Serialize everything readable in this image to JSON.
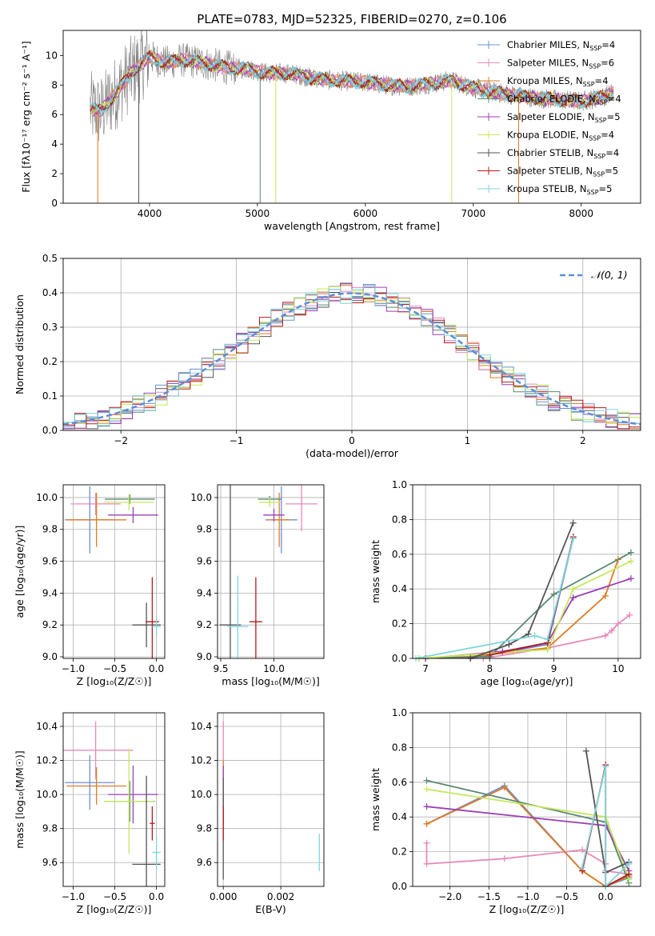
{
  "figure_title": "PLATE=0783, MJD=52325, FIBERID=0270, z=0.106",
  "series_styles": [
    {
      "name": "Chabrier MILES",
      "nssp": "4",
      "color": "#6b8fd6"
    },
    {
      "name": "Salpeter MILES",
      "nssp": "6",
      "color": "#e88aba"
    },
    {
      "name": "Kroupa MILES",
      "nssp": "4",
      "color": "#e07b22"
    },
    {
      "name": "Chabrier ELODIE",
      "nssp": "4",
      "color": "#5a8a72"
    },
    {
      "name": "Salpeter ELODIE",
      "nssp": "5",
      "color": "#9b3fb5"
    },
    {
      "name": "Kroupa ELODIE",
      "nssp": "4",
      "color": "#c6e85a"
    },
    {
      "name": "Chabrier STELIB",
      "nssp": "4",
      "color": "#555555"
    },
    {
      "name": "Salpeter STELIB",
      "nssp": "5",
      "color": "#b31b1b"
    },
    {
      "name": "Kroupa STELIB",
      "nssp": "5",
      "color": "#7fd6dc"
    }
  ],
  "chart_data": [
    {
      "id": "spectrum",
      "type": "line",
      "xlabel": "wavelength [Angstrom, rest frame]",
      "ylabel": "Flux [fλ10⁻¹⁷ erg cm⁻² s⁻¹ A⁻¹]",
      "xlim": [
        3200,
        8550
      ],
      "ylim": [
        0,
        11.7
      ],
      "xticks": [
        4000,
        5000,
        6000,
        7000,
        8000
      ],
      "yticks": [
        0,
        2,
        4,
        6,
        8,
        10
      ],
      "legend_position": "top-right",
      "model_curve": {
        "x": [
          3450,
          3550,
          3700,
          3850,
          4000,
          4150,
          4300,
          4500,
          4700,
          4900,
          5100,
          5300,
          5500,
          5700,
          6000,
          6200,
          6400,
          6600,
          6800,
          7000,
          7200,
          7400,
          7600,
          7800,
          8000,
          8200,
          8300
        ],
        "y": [
          6.4,
          6.2,
          7.6,
          9.0,
          9.9,
          9.5,
          9.7,
          9.5,
          9.2,
          9.1,
          8.8,
          8.8,
          8.5,
          8.3,
          8.2,
          8.0,
          7.9,
          8.1,
          8.3,
          7.8,
          7.5,
          7.3,
          7.1,
          7.0,
          6.9,
          7.2,
          7.5
        ]
      }
    },
    {
      "id": "residuals",
      "type": "bar",
      "xlabel": "(data-model)/error",
      "ylabel": "Normed distribution",
      "xlim": [
        -2.5,
        2.5
      ],
      "ylim": [
        0,
        0.5
      ],
      "xticks": [
        -2,
        -1,
        0,
        1,
        2
      ],
      "yticks": [
        0.0,
        0.1,
        0.2,
        0.3,
        0.4,
        0.5
      ],
      "legend_label": "𝒩(0, 1)",
      "legend_position": "top-right",
      "bin_width": 0.1
    },
    {
      "id": "age-vs-metallicity",
      "type": "scatter",
      "xlabel": "Z [log₁₀(Z/Z☉)]",
      "ylabel": "age  [log₁₀(age/yr)]",
      "xlim": [
        -1.12,
        0.1
      ],
      "ylim": [
        8.99,
        10.08
      ],
      "xticks": [
        -1.0,
        -0.5,
        0.0
      ],
      "yticks": [
        9.0,
        9.2,
        9.4,
        9.6,
        9.8,
        10.0
      ],
      "points": [
        {
          "series": 0,
          "x": -0.8,
          "xerr": 0.3,
          "y": 9.86,
          "yerr": 0.21
        },
        {
          "series": 1,
          "x": -0.73,
          "xerr": 0.3,
          "y": 9.96,
          "yerr": 0.07
        },
        {
          "series": 2,
          "x": -0.72,
          "xerr": 0.36,
          "y": 9.86,
          "yerr": 0.17
        },
        {
          "series": 3,
          "x": -0.32,
          "xerr": 0.3,
          "y": 9.99,
          "yerr": 0.03
        },
        {
          "series": 4,
          "x": -0.28,
          "xerr": 0.3,
          "y": 9.89,
          "yerr": 0.05
        },
        {
          "series": 5,
          "x": -0.33,
          "xerr": 0.3,
          "y": 9.97,
          "yerr": 0.05
        },
        {
          "series": 6,
          "x": -0.12,
          "xerr": 0.17,
          "y": 9.2,
          "yerr": 0.14
        },
        {
          "series": 7,
          "x": -0.05,
          "xerr": 0.08,
          "y": 9.22,
          "yerr": 0.28
        },
        {
          "series": 8,
          "x": 0.0,
          "xerr": 0.05,
          "y": 9.19,
          "yerr": 0.06
        }
      ]
    },
    {
      "id": "age-vs-mass",
      "type": "scatter",
      "xlabel": "mass [log₁₀(M/M☉)]",
      "ylabel": "",
      "xlim": [
        9.47,
        10.47
      ],
      "ylim": [
        8.99,
        10.08
      ],
      "xticks": [
        9.5,
        10.0
      ],
      "yticks": [
        9.0,
        9.2,
        9.4,
        9.6,
        9.8,
        10.0
      ],
      "points": [
        {
          "series": 0,
          "x": 10.07,
          "xerr": 0.15,
          "y": 9.86,
          "yerr": 0.21
        },
        {
          "series": 1,
          "x": 10.26,
          "xerr": 0.15,
          "y": 9.96,
          "yerr": 0.17
        },
        {
          "series": 2,
          "x": 10.05,
          "xerr": 0.1,
          "y": 9.86,
          "yerr": 0.17
        },
        {
          "series": 3,
          "x": 9.96,
          "xerr": 0.11,
          "y": 9.99,
          "yerr": 0.02
        },
        {
          "series": 4,
          "x": 10.0,
          "xerr": 0.1,
          "y": 9.89,
          "yerr": 0.04
        },
        {
          "series": 5,
          "x": 9.96,
          "xerr": 0.1,
          "y": 9.97,
          "yerr": 0.03
        },
        {
          "series": 6,
          "x": 9.59,
          "xerr": 0.1,
          "y": 9.2,
          "yerr": 0.89
        },
        {
          "series": 7,
          "x": 9.83,
          "xerr": 0.06,
          "y": 9.22,
          "yerr": 0.28
        },
        {
          "series": 8,
          "x": 9.66,
          "xerr": 0.1,
          "y": 9.19,
          "yerr": 0.32
        }
      ]
    },
    {
      "id": "mass-weight-vs-age",
      "type": "line",
      "xlabel": "age  [log₁₀(age/yr)]",
      "ylabel": "mass weight",
      "xlim": [
        6.8,
        10.35
      ],
      "ylim": [
        0,
        1.0
      ],
      "xticks": [
        7,
        8,
        9,
        10
      ],
      "yticks": [
        0.0,
        0.2,
        0.4,
        0.6,
        0.8,
        1.0
      ],
      "series": [
        {
          "series": 0,
          "x": [
            6.9,
            7.7,
            8.9,
            9.3
          ],
          "y": [
            0.0,
            0.0,
            0.08,
            0.69
          ]
        },
        {
          "series": 1,
          "x": [
            7.9,
            8.9,
            9.8,
            9.9,
            10.0,
            10.18
          ],
          "y": [
            0.0,
            0.06,
            0.13,
            0.16,
            0.2,
            0.25
          ]
        },
        {
          "series": 2,
          "x": [
            7.0,
            7.7,
            8.9,
            9.8,
            10.0
          ],
          "y": [
            0.0,
            0.01,
            0.06,
            0.36,
            0.57
          ]
        },
        {
          "series": 3,
          "x": [
            7.0,
            8.0,
            9.0,
            10.2
          ],
          "y": [
            0.0,
            0.01,
            0.37,
            0.61
          ]
        },
        {
          "series": 4,
          "x": [
            7.0,
            8.2,
            8.9,
            9.3,
            10.2
          ],
          "y": [
            0.0,
            0.04,
            0.09,
            0.35,
            0.46
          ]
        },
        {
          "series": 5,
          "x": [
            6.9,
            8.4,
            8.9,
            9.3,
            10.2
          ],
          "y": [
            0.0,
            0.04,
            0.05,
            0.4,
            0.56
          ]
        },
        {
          "series": 6,
          "x": [
            7.7,
            8.3,
            8.6,
            9.3
          ],
          "y": [
            0.0,
            0.08,
            0.14,
            0.78
          ]
        },
        {
          "series": 7,
          "x": [
            8.0,
            8.9,
            9.3
          ],
          "y": [
            0.02,
            0.09,
            0.7
          ]
        },
        {
          "series": 8,
          "x": [
            6.85,
            8.7,
            8.9,
            9.3
          ],
          "y": [
            0.0,
            0.13,
            0.11,
            0.69
          ]
        }
      ]
    },
    {
      "id": "mass-vs-metallicity",
      "type": "scatter",
      "xlabel": "Z [log₁₀(Z/Z☉)]",
      "ylabel": "mass [log₁₀(M/M☉)]",
      "xlim": [
        -1.12,
        0.1
      ],
      "ylim": [
        9.46,
        10.48
      ],
      "xticks": [
        -1.0,
        -0.5,
        0.0
      ],
      "yticks": [
        9.6,
        9.8,
        10.0,
        10.2,
        10.4
      ],
      "points": [
        {
          "series": 0,
          "x": -0.8,
          "xerr": 0.3,
          "y": 10.07,
          "yerr": 0.16
        },
        {
          "series": 1,
          "x": -0.73,
          "xerr": 0.45,
          "y": 10.26,
          "yerr": 0.17
        },
        {
          "series": 2,
          "x": -0.72,
          "xerr": 0.36,
          "y": 10.05,
          "yerr": 0.11
        },
        {
          "series": 3,
          "x": -0.32,
          "xerr": 0.3,
          "y": 9.96,
          "yerr": 0.12
        },
        {
          "series": 4,
          "x": -0.28,
          "xerr": 0.3,
          "y": 10.0,
          "yerr": 0.17
        },
        {
          "series": 5,
          "x": -0.33,
          "xerr": 0.3,
          "y": 9.96,
          "yerr": 0.31
        },
        {
          "series": 6,
          "x": -0.12,
          "xerr": 0.17,
          "y": 9.59,
          "yerr": 0.52
        },
        {
          "series": 7,
          "x": -0.05,
          "xerr": 0.03,
          "y": 9.83,
          "yerr": 0.1
        },
        {
          "series": 8,
          "x": 0.0,
          "xerr": 0.05,
          "y": 9.66,
          "yerr": 0.1
        }
      ]
    },
    {
      "id": "mass-vs-extinction",
      "type": "scatter",
      "xlabel": "E(B-V)",
      "ylabel": "",
      "xlim": [
        -0.0002,
        0.0035
      ],
      "ylim": [
        9.46,
        10.48
      ],
      "xticks": [
        0.0,
        0.002
      ],
      "xtick_labels": [
        "0.000",
        "0.002"
      ],
      "yticks": [
        9.6,
        9.8,
        10.0,
        10.2,
        10.4
      ],
      "points": [
        {
          "series": 1,
          "x": 0.0,
          "y": 10.26,
          "yerr": 0.17
        },
        {
          "series": 2,
          "x": 0.0,
          "y": 10.05,
          "yerr": 0.15
        },
        {
          "series": 4,
          "x": 0.0,
          "y": 10.0,
          "yerr": 0.17
        },
        {
          "series": 6,
          "x": 0.0,
          "y": 9.8,
          "yerr": 0.3
        },
        {
          "series": 7,
          "x": 0.0,
          "y": 9.83,
          "yerr": 0.1
        },
        {
          "series": 8,
          "x": 0.00334,
          "y": 9.66,
          "yerr": 0.11
        }
      ]
    },
    {
      "id": "mass-weight-vs-metallicity",
      "type": "line",
      "xlabel": "Z [log₁₀(Z/Z☉)]",
      "ylabel": "mass weight",
      "xlim": [
        -2.48,
        0.45
      ],
      "ylim": [
        0,
        1.0
      ],
      "xticks": [
        -2.0,
        -1.5,
        -1.0,
        -0.5,
        0.0
      ],
      "yticks": [
        0.0,
        0.2,
        0.4,
        0.6,
        0.8,
        1.0
      ],
      "series": [
        {
          "series": 0,
          "x": [
            -2.3,
            -1.3,
            -0.3,
            0.0,
            0.3
          ],
          "y": [
            0.36,
            0.58,
            0.09,
            0.0,
            0.05
          ]
        },
        {
          "series": 1,
          "x": [
            -2.3,
            -2.3,
            -1.3,
            -0.3,
            0.0,
            0.0,
            0.3
          ],
          "y": [
            0.25,
            0.13,
            0.16,
            0.21,
            0.13,
            0.09,
            0.07
          ]
        },
        {
          "series": 2,
          "x": [
            -2.3,
            -1.3,
            -0.3,
            0.0,
            0.3
          ],
          "y": [
            0.36,
            0.57,
            0.09,
            0.0,
            0.06
          ]
        },
        {
          "series": 3,
          "x": [
            -2.3,
            0.0,
            0.3
          ],
          "y": [
            0.61,
            0.37,
            0.02
          ]
        },
        {
          "series": 4,
          "x": [
            -2.3,
            0.0,
            0.3
          ],
          "y": [
            0.46,
            0.35,
            0.09
          ]
        },
        {
          "series": 5,
          "x": [
            -2.3,
            0.0,
            0.3
          ],
          "y": [
            0.56,
            0.4,
            0.04
          ]
        },
        {
          "series": 6,
          "x": [
            -0.25,
            0.0,
            0.3
          ],
          "y": [
            0.78,
            0.08,
            0.14
          ]
        },
        {
          "series": 7,
          "x": [
            -0.3,
            0.0,
            0.0,
            0.3
          ],
          "y": [
            0.09,
            0.7,
            0.0,
            0.07
          ]
        },
        {
          "series": 8,
          "x": [
            -0.3,
            0.0,
            0.0,
            0.3
          ],
          "y": [
            0.11,
            0.69,
            0.0,
            0.13
          ]
        }
      ]
    }
  ]
}
